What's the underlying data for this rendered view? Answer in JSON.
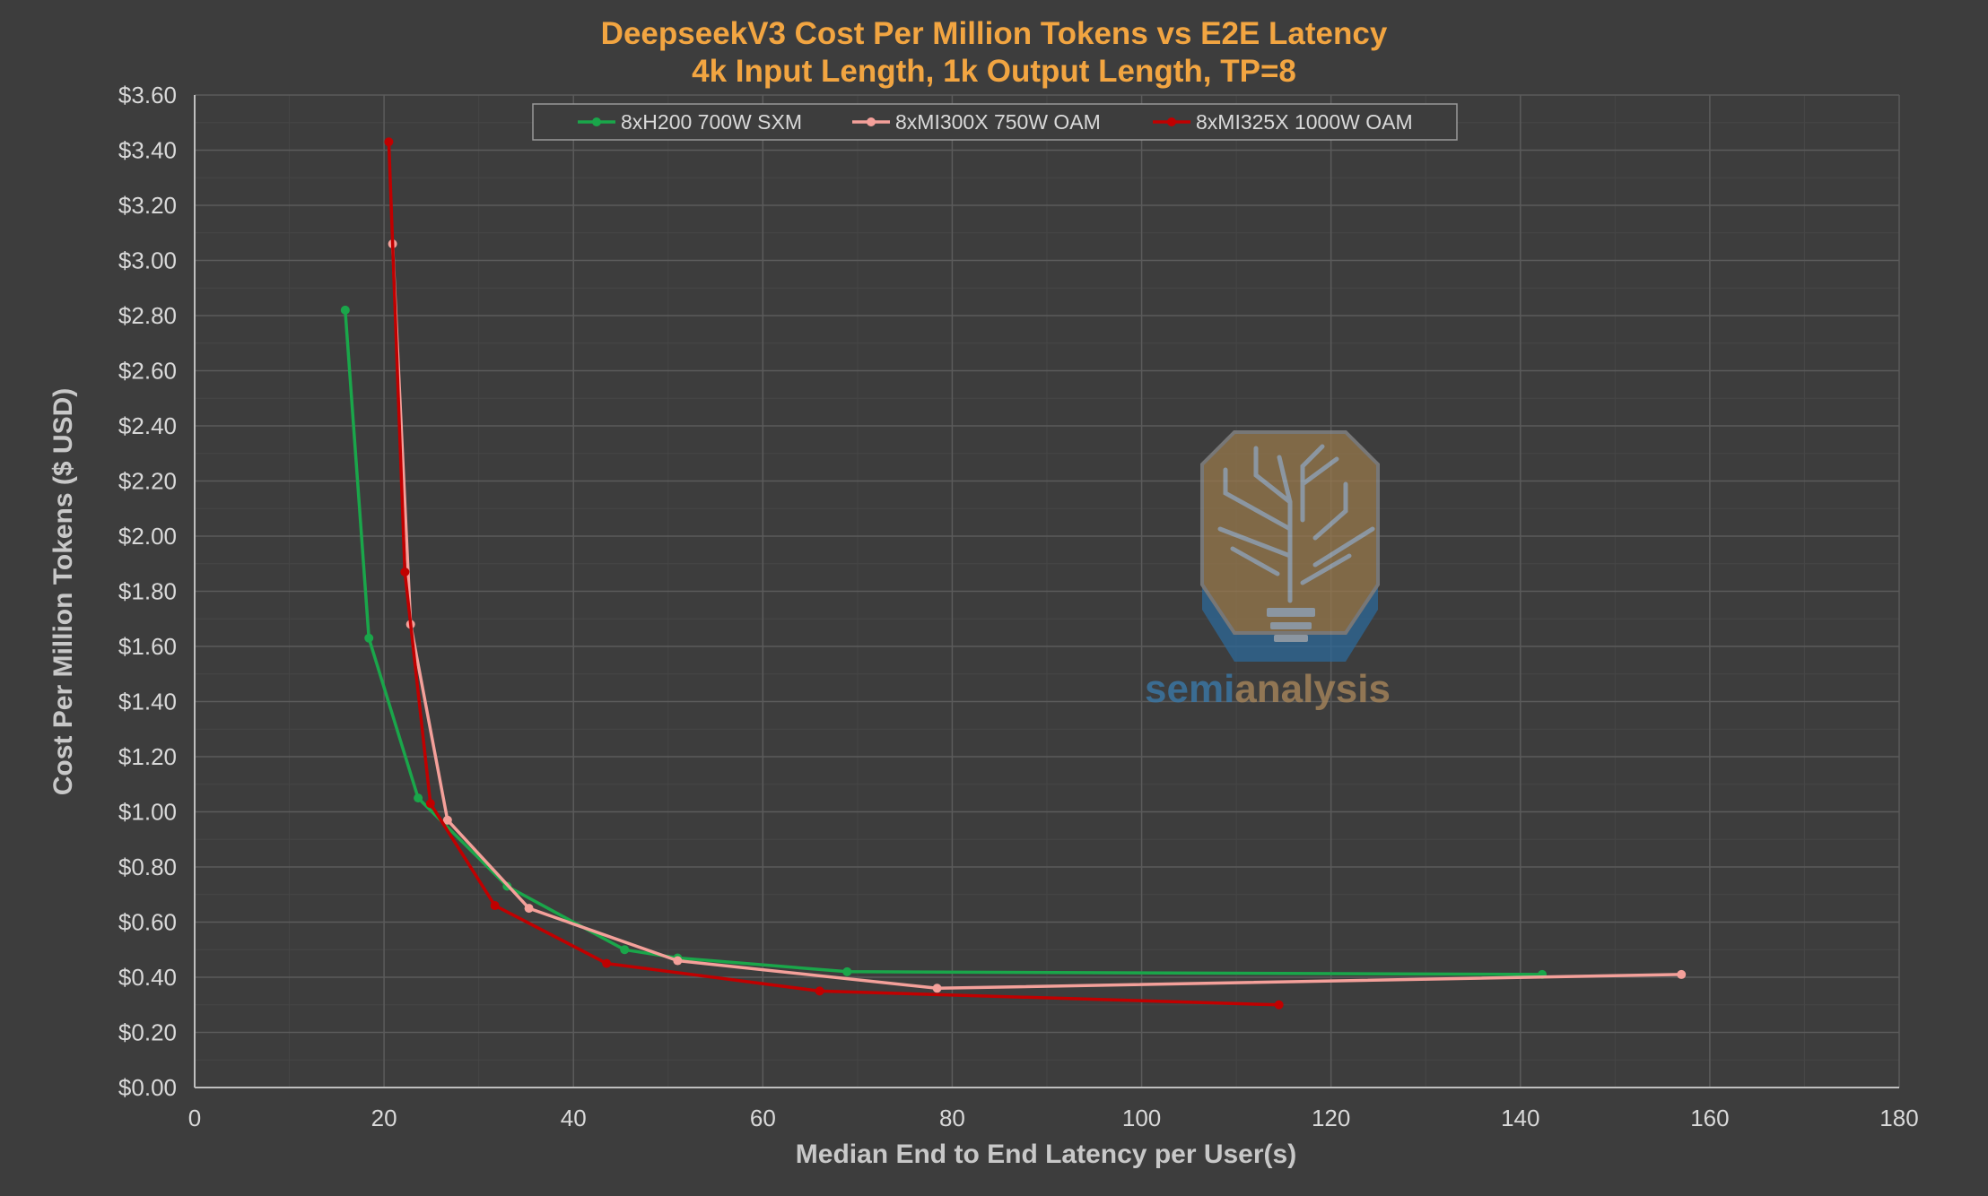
{
  "chart_data": {
    "type": "line",
    "title": "DeepseekV3 Cost Per Million Tokens vs E2E Latency",
    "subtitle": "4k Input Length, 1k Output Length, TP=8",
    "xlabel": "Median End to End Latency per User(s)",
    "ylabel": "Cost Per Million Tokens ($ USD)",
    "xlim": [
      0,
      180
    ],
    "ylim": [
      0,
      3.6
    ],
    "x_ticks": [
      0,
      20,
      40,
      60,
      80,
      100,
      120,
      140,
      160,
      180
    ],
    "y_ticks": [
      0,
      0.2,
      0.4,
      0.6,
      0.8,
      1.0,
      1.2,
      1.4,
      1.6,
      1.8,
      2.0,
      2.2,
      2.4,
      2.6,
      2.8,
      3.0,
      3.2,
      3.4,
      3.6
    ],
    "y_tick_labels": [
      "$0.00",
      "$0.20",
      "$0.40",
      "$0.60",
      "$0.80",
      "$1.00",
      "$1.20",
      "$1.40",
      "$1.60",
      "$1.80",
      "$2.00",
      "$2.20",
      "$2.40",
      "$2.60",
      "$2.80",
      "$3.00",
      "$3.20",
      "$3.40",
      "$3.60"
    ],
    "grid": true,
    "legend_position": "top",
    "series": [
      {
        "name": "8xH200 700W SXM",
        "color": "#1aa64a",
        "points": [
          [
            15.9,
            2.82
          ],
          [
            18.4,
            1.63
          ],
          [
            23.6,
            1.05
          ],
          [
            33.0,
            0.73
          ],
          [
            45.4,
            0.5
          ],
          [
            51.0,
            0.47
          ],
          [
            68.9,
            0.42
          ],
          [
            142.3,
            0.41
          ]
        ]
      },
      {
        "name": "8xMI300X 750W OAM",
        "color": "#f4a09a",
        "points": [
          [
            20.9,
            3.06
          ],
          [
            22.8,
            1.68
          ],
          [
            26.7,
            0.97
          ],
          [
            35.3,
            0.65
          ],
          [
            51.0,
            0.46
          ],
          [
            78.4,
            0.36
          ],
          [
            157.0,
            0.41
          ]
        ]
      },
      {
        "name": "8xMI325X 1000W OAM",
        "color": "#c00000",
        "points": [
          [
            20.5,
            3.43
          ],
          [
            22.2,
            1.87
          ],
          [
            24.9,
            1.03
          ],
          [
            31.7,
            0.66
          ],
          [
            43.5,
            0.45
          ],
          [
            66.0,
            0.35
          ],
          [
            114.5,
            0.3
          ]
        ]
      }
    ]
  },
  "watermark": {
    "word_part1": "semi",
    "word_part2": "analysis",
    "color_part1": "#3a78a8",
    "color_part2": "#a6855a"
  }
}
